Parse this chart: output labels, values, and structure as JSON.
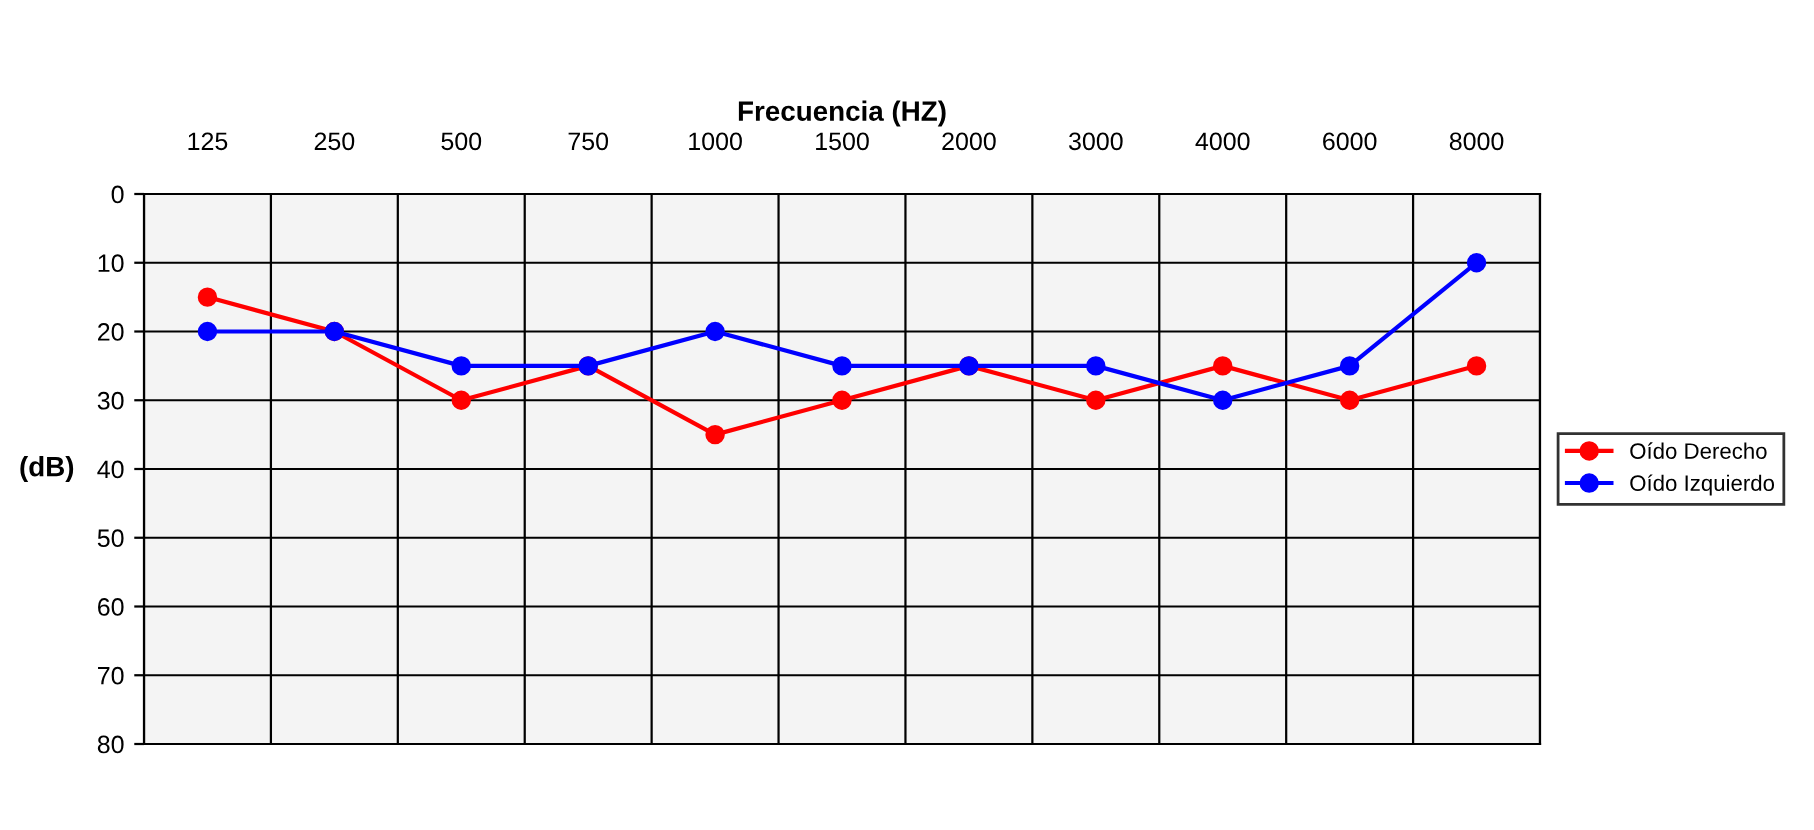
{
  "chart_data": {
    "type": "line",
    "xlabel": "Frecuencia (HZ)",
    "ylabel": "(dB)",
    "categories": [
      "125",
      "250",
      "500",
      "750",
      "1000",
      "1500",
      "2000",
      "3000",
      "4000",
      "6000",
      "8000"
    ],
    "series": [
      {
        "name": "Oído Derecho",
        "color": "#ff0000",
        "values": [
          15,
          20,
          30,
          25,
          35,
          30,
          25,
          30,
          25,
          30,
          25
        ]
      },
      {
        "name": "Oído Izquierdo",
        "color": "#0000ff",
        "values": [
          20,
          20,
          25,
          25,
          20,
          25,
          25,
          25,
          30,
          25,
          10
        ]
      }
    ],
    "ylim": [
      80,
      0
    ],
    "yticks": [
      0,
      10,
      20,
      30,
      40,
      50,
      60,
      70,
      80
    ],
    "grid": true,
    "legend": "right",
    "marker": "circle",
    "line_style": "solid"
  }
}
